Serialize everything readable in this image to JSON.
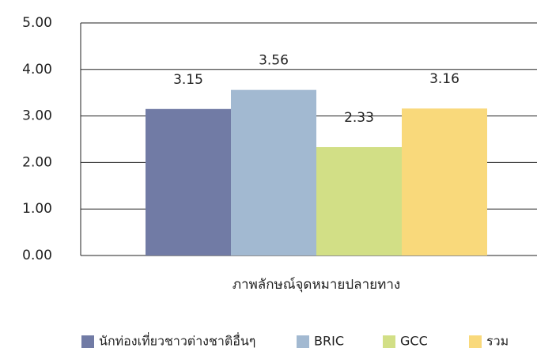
{
  "chart_data": {
    "type": "bar",
    "categories": [
      "ภาพลักษณ์จุดหมายปลายทาง"
    ],
    "series": [
      {
        "name": "นักท่องเที่ยวชาวต่างชาติอื่นๆ",
        "color": "#717ba5",
        "values": [
          3.15
        ]
      },
      {
        "name": "BRIC",
        "color": "#a2b9d1",
        "values": [
          3.56
        ]
      },
      {
        "name": "GCC",
        "color": "#d2df86",
        "values": [
          2.33
        ]
      },
      {
        "name": "รวม",
        "color": "#f9d97b",
        "values": [
          3.16
        ]
      }
    ],
    "ylim": [
      0,
      5
    ],
    "yticks": [
      {
        "value": 0,
        "label": "0.00"
      },
      {
        "value": 1,
        "label": "1.00"
      },
      {
        "value": 2,
        "label": "2.00"
      },
      {
        "value": 3,
        "label": "3.00"
      },
      {
        "value": 4,
        "label": "4.00"
      },
      {
        "value": 5,
        "label": "5.00"
      }
    ],
    "grid": true,
    "legend": "bottom"
  }
}
